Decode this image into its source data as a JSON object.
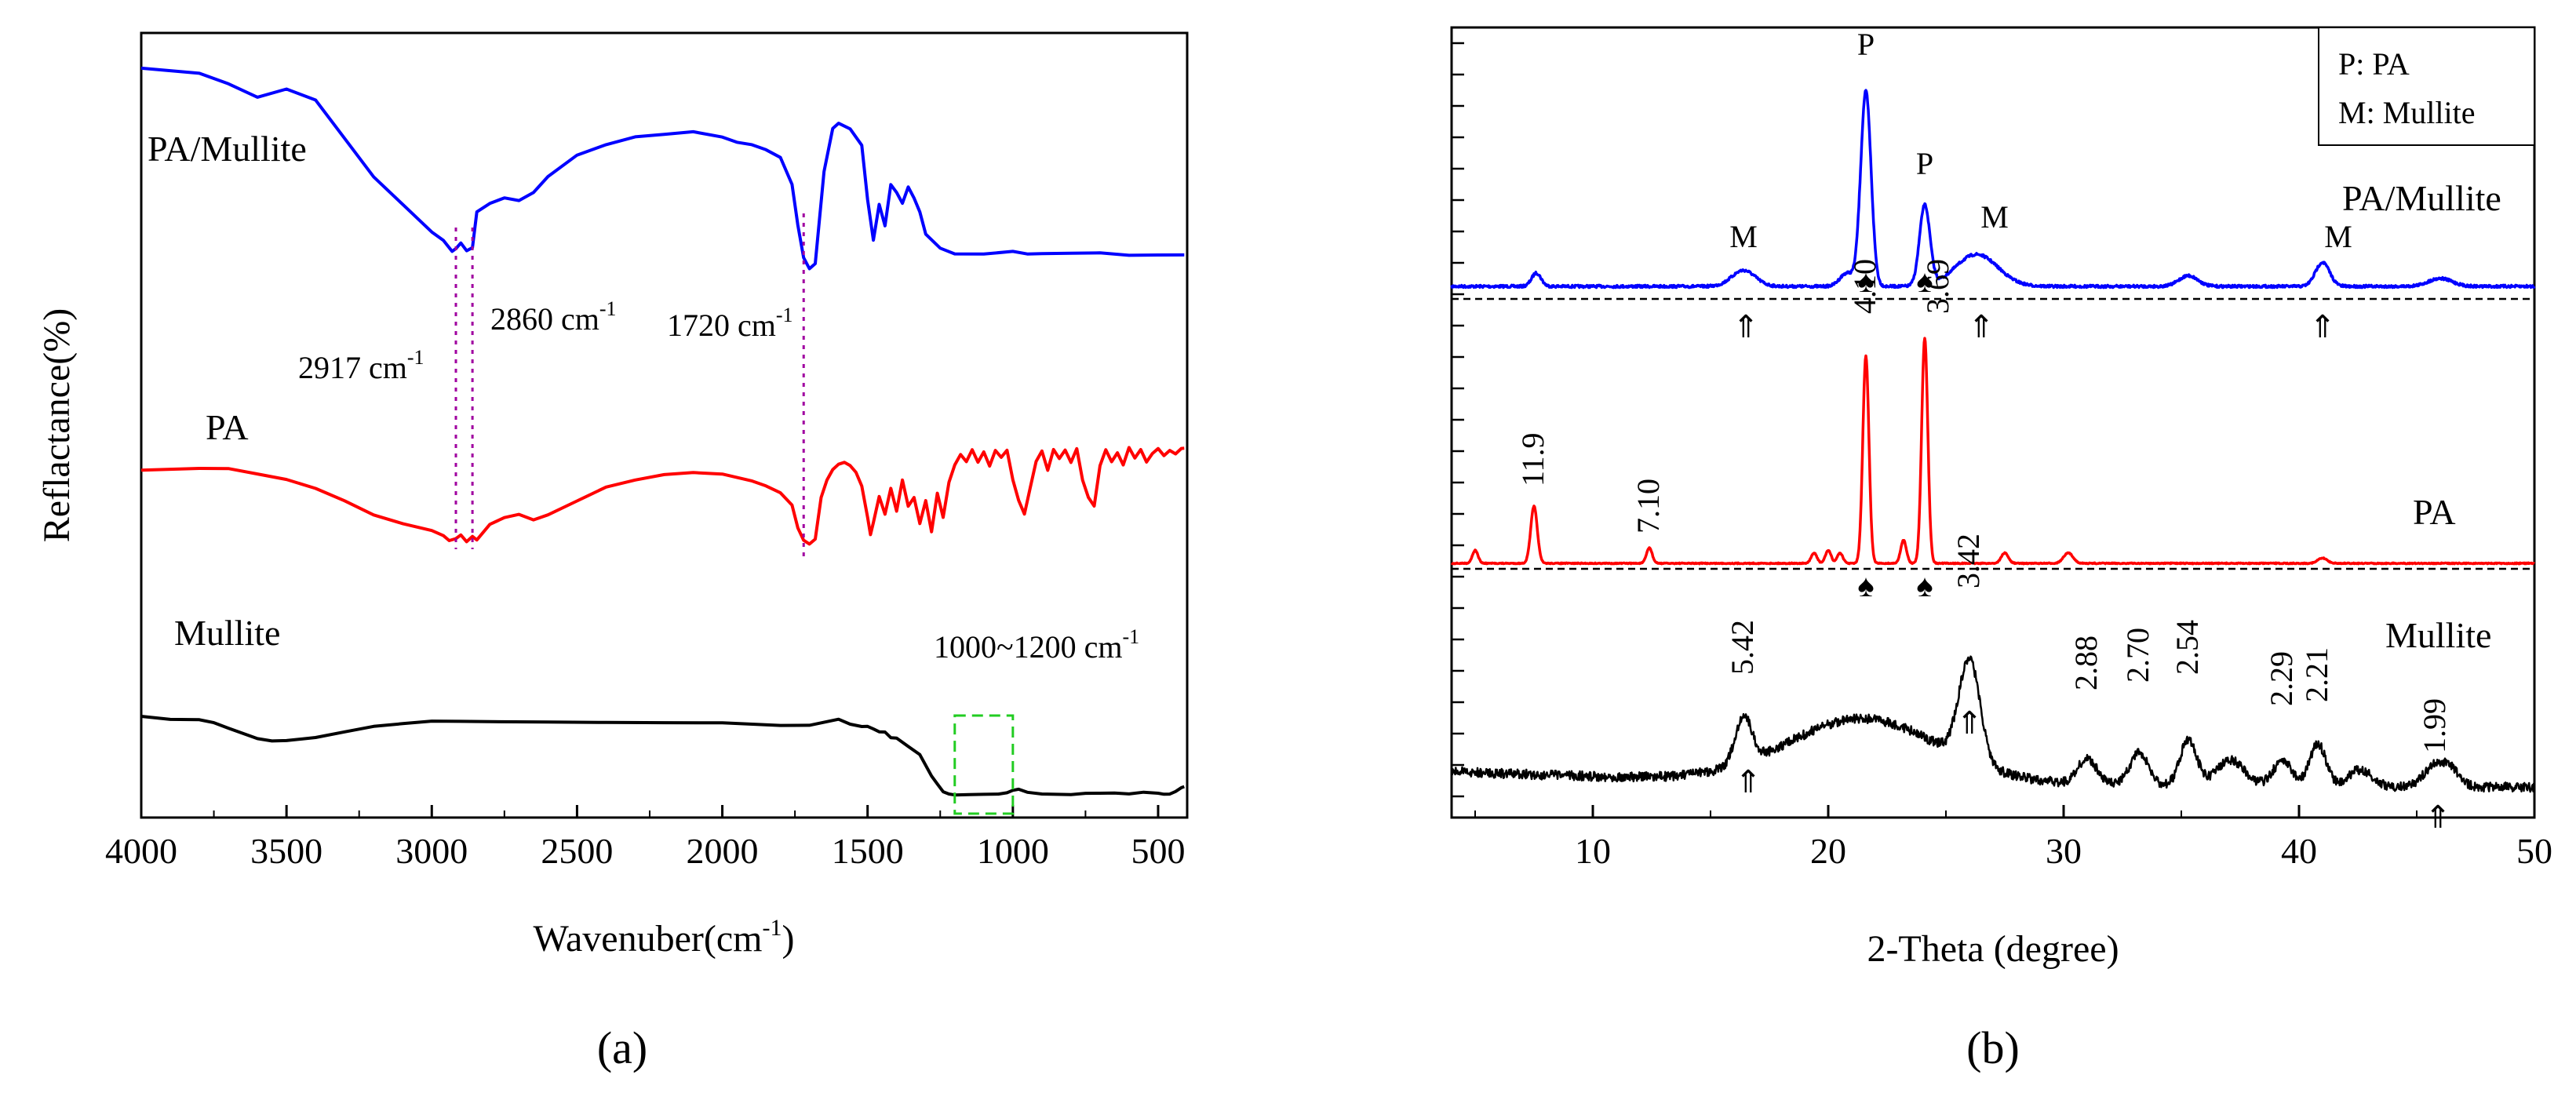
{
  "chart_data": [
    {
      "type": "line",
      "panel_label": "(a)",
      "title": "",
      "xlabel": "Wavenuber(cm-1)",
      "xlabel_main": "Wavenuber(cm",
      "xlabel_sup": "-1",
      "xlabel_close": ")",
      "ylabel": "Reflactance(%)",
      "xlim": [
        4000,
        400
      ],
      "xticks": [
        4000,
        3500,
        3000,
        2500,
        2000,
        1500,
        1000,
        500
      ],
      "tick_labels": [
        "4000",
        "3500",
        "3000",
        "2500",
        "2000",
        "1500",
        "1000",
        "500"
      ],
      "series": [
        {
          "name": "PA/Mullite",
          "color": "#0000ff",
          "x": [
            4000,
            3800,
            3700,
            3600,
            3500,
            3400,
            3300,
            3200,
            3100,
            3000,
            2960,
            2930,
            2917,
            2900,
            2880,
            2860,
            2845,
            2800,
            2750,
            2700,
            2650,
            2600,
            2500,
            2400,
            2300,
            2200,
            2100,
            2000,
            1950,
            1900,
            1850,
            1800,
            1760,
            1740,
            1720,
            1700,
            1680,
            1650,
            1620,
            1600,
            1560,
            1520,
            1500,
            1480,
            1460,
            1440,
            1420,
            1400,
            1380,
            1360,
            1340,
            1320,
            1300,
            1250,
            1200,
            1100,
            1000,
            950,
            900,
            800,
            700,
            600,
            500,
            410
          ],
          "y": [
            88,
            86,
            82,
            77,
            80,
            76,
            62,
            48,
            38,
            28,
            25,
            21,
            22,
            24,
            21,
            22,
            35,
            38,
            40,
            39,
            42,
            48,
            56,
            60,
            63,
            64,
            65,
            63,
            61,
            60,
            58,
            55,
            45,
            30,
            18,
            14,
            16,
            50,
            66,
            68,
            66,
            60,
            40,
            25,
            38,
            30,
            45,
            42,
            38,
            44,
            40,
            35,
            27,
            22,
            20,
            20,
            21,
            20,
            20,
            20,
            20,
            19,
            19,
            19
          ]
        },
        {
          "name": "PA",
          "color": "#ff0000",
          "x": [
            4000,
            3800,
            3700,
            3600,
            3500,
            3400,
            3300,
            3200,
            3100,
            3000,
            2960,
            2940,
            2917,
            2900,
            2880,
            2860,
            2845,
            2800,
            2750,
            2700,
            2650,
            2600,
            2500,
            2400,
            2300,
            2200,
            2100,
            2000,
            1900,
            1850,
            1800,
            1760,
            1740,
            1720,
            1700,
            1680,
            1660,
            1640,
            1620,
            1600,
            1580,
            1560,
            1540,
            1520,
            1500,
            1490,
            1480,
            1460,
            1440,
            1420,
            1400,
            1380,
            1360,
            1340,
            1320,
            1300,
            1280,
            1260,
            1240,
            1220,
            1200,
            1180,
            1160,
            1140,
            1120,
            1100,
            1080,
            1060,
            1040,
            1020,
            1000,
            980,
            960,
            940,
            920,
            900,
            880,
            860,
            840,
            820,
            800,
            780,
            760,
            740,
            720,
            700,
            680,
            660,
            640,
            620,
            600,
            580,
            560,
            540,
            520,
            500,
            480,
            460,
            440,
            420,
            410
          ],
          "y": [
            45,
            46,
            46,
            43,
            40,
            35,
            28,
            20,
            15,
            11,
            8,
            5,
            6,
            8,
            4,
            7,
            5,
            14,
            18,
            20,
            17,
            20,
            28,
            36,
            40,
            43,
            44,
            43,
            39,
            36,
            32,
            25,
            12,
            5,
            3,
            6,
            30,
            40,
            46,
            49,
            50,
            48,
            44,
            36,
            18,
            8,
            15,
            30,
            20,
            35,
            22,
            40,
            25,
            30,
            15,
            28,
            10,
            32,
            18,
            38,
            48,
            54,
            50,
            57,
            50,
            56,
            48,
            57,
            53,
            57,
            40,
            28,
            20,
            35,
            50,
            56,
            45,
            57,
            52,
            57,
            50,
            58,
            40,
            30,
            25,
            48,
            57,
            50,
            55,
            48,
            58,
            52,
            57,
            50,
            55,
            58,
            54,
            57,
            55,
            58,
            58
          ]
        },
        {
          "name": "Mullite",
          "color": "#000000",
          "x": [
            4000,
            3900,
            3800,
            3750,
            3700,
            3650,
            3600,
            3550,
            3500,
            3400,
            3300,
            3200,
            3100,
            3000,
            2900,
            2800,
            2600,
            2400,
            2200,
            2000,
            1800,
            1700,
            1650,
            1600,
            1560,
            1520,
            1500,
            1480,
            1460,
            1440,
            1420,
            1400,
            1360,
            1320,
            1280,
            1260,
            1240,
            1220,
            1200,
            1150,
            1100,
            1050,
            1020,
            1000,
            980,
            950,
            900,
            850,
            800,
            750,
            700,
            650,
            600,
            550,
            500,
            480,
            460,
            440,
            420,
            410
          ],
          "y": [
            30,
            29,
            29,
            28,
            26,
            24,
            22,
            21,
            21,
            22,
            24,
            26,
            27,
            28,
            28,
            28,
            28,
            28,
            28,
            28,
            27,
            27,
            28,
            29,
            27,
            26,
            26,
            25,
            24,
            24,
            22,
            22,
            19,
            16,
            8,
            5,
            2,
            1,
            0.5,
            0.5,
            0.5,
            0.5,
            1,
            2,
            2.5,
            1.5,
            1,
            1,
            1,
            1.5,
            1.5,
            1.5,
            1,
            1.5,
            1,
            0.5,
            0.5,
            1.5,
            3,
            3.5
          ]
        }
      ],
      "labels": [
        {
          "text": "PA/Mullite",
          "x": 3980,
          "y": 80
        },
        {
          "text": "PA",
          "x": 3760,
          "y": 32
        },
        {
          "text": "Mullite",
          "x": 3830,
          "y": 13
        }
      ],
      "annotations": [
        {
          "text": "2917 cm",
          "sup": "-1",
          "x": 2917
        },
        {
          "text": "2860 cm",
          "sup": "-1",
          "x": 2860
        },
        {
          "text": "1720 cm",
          "sup": "-1",
          "x": 1720
        },
        {
          "text": "1000~1200 cm",
          "sup": "-1",
          "range": [
            1200,
            1000
          ]
        }
      ]
    },
    {
      "type": "line",
      "panel_label": "(b)",
      "title": "",
      "xlabel": "2-Theta (degree)",
      "ylabel": "",
      "xlim": [
        4,
        50
      ],
      "xticks": [
        10,
        20,
        30,
        40,
        50
      ],
      "tick_labels": [
        "10",
        "20",
        "30",
        "40",
        "50"
      ],
      "legend": [
        "P: PA",
        "M: Mullite"
      ],
      "legend_position": "top-right",
      "series": [
        {
          "name": "PA/Mullite",
          "color": "#0000ff",
          "peaks": [
            {
              "x": 7.6,
              "h": 5,
              "w": 0.2
            },
            {
              "x": 16.4,
              "h": 6,
              "w": 0.5
            },
            {
              "x": 20.8,
              "h": 5,
              "w": 0.3
            },
            {
              "x": 21.6,
              "h": 73,
              "w": 0.22
            },
            {
              "x": 24.1,
              "h": 30,
              "w": 0.22
            },
            {
              "x": 26.3,
              "h": 12,
              "w": 0.9
            },
            {
              "x": 35.3,
              "h": 4,
              "w": 0.4
            },
            {
              "x": 41.0,
              "h": 9,
              "w": 0.3
            },
            {
              "x": 46.0,
              "h": 3,
              "w": 0.5
            }
          ]
        },
        {
          "name": "PA",
          "color": "#ff0000",
          "peaks": [
            {
              "x": 5.0,
              "h": 5,
              "w": 0.12
            },
            {
              "x": 7.5,
              "h": 22,
              "w": 0.14
            },
            {
              "x": 12.4,
              "h": 6,
              "w": 0.12
            },
            {
              "x": 19.4,
              "h": 4,
              "w": 0.12
            },
            {
              "x": 20.0,
              "h": 5,
              "w": 0.12
            },
            {
              "x": 20.5,
              "h": 4,
              "w": 0.12
            },
            {
              "x": 21.6,
              "h": 80,
              "w": 0.13
            },
            {
              "x": 23.2,
              "h": 9,
              "w": 0.12
            },
            {
              "x": 24.1,
              "h": 87,
              "w": 0.13
            },
            {
              "x": 27.5,
              "h": 4,
              "w": 0.15
            },
            {
              "x": 30.2,
              "h": 4,
              "w": 0.2
            },
            {
              "x": 41.0,
              "h": 2,
              "w": 0.2
            }
          ]
        },
        {
          "name": "Mullite",
          "color": "#000000",
          "peaks": [
            {
              "x": 16.4,
              "h": 22,
              "w": 0.35
            },
            {
              "x": 21.5,
              "h": 30,
              "w": 3.2
            },
            {
              "x": 26.0,
              "h": 48,
              "w": 0.45
            },
            {
              "x": 31.0,
              "h": 12,
              "w": 0.4
            },
            {
              "x": 33.2,
              "h": 15,
              "w": 0.4
            },
            {
              "x": 35.3,
              "h": 22,
              "w": 0.35
            },
            {
              "x": 37.1,
              "h": 12,
              "w": 0.6
            },
            {
              "x": 39.3,
              "h": 12,
              "w": 0.4
            },
            {
              "x": 40.8,
              "h": 20,
              "w": 0.35
            },
            {
              "x": 42.6,
              "h": 8,
              "w": 0.5
            },
            {
              "x": 45.8,
              "h": 10,
              "w": 0.5
            },
            {
              "x": 46.5,
              "h": 6,
              "w": 0.4
            }
          ]
        }
      ],
      "labels": [
        {
          "text": "PA/Mullite"
        },
        {
          "text": "PA"
        },
        {
          "text": "Mullite"
        }
      ],
      "annotations": [
        {
          "text": "P",
          "x": 21.6,
          "series": "PA/Mullite"
        },
        {
          "text": "P",
          "x": 24.1,
          "series": "PA/Mullite"
        },
        {
          "text": "M",
          "x": 16.4,
          "series": "PA/Mullite"
        },
        {
          "text": "M",
          "x": 26.4,
          "series": "PA/Mullite"
        },
        {
          "text": "M",
          "x": 41.0,
          "series": "PA/Mullite"
        },
        {
          "text": "11.9",
          "x": 7.5,
          "series": "PA"
        },
        {
          "text": "7.10",
          "x": 12.4,
          "series": "PA"
        },
        {
          "text": "4.10",
          "x": 21.6,
          "series": "PA"
        },
        {
          "text": "3.69",
          "x": 24.1,
          "series": "PA"
        },
        {
          "text": "3.42",
          "x": 26.0,
          "series": "Mullite"
        },
        {
          "text": "5.42",
          "x": 16.4,
          "series": "Mullite"
        },
        {
          "text": "2.88",
          "x": 31.0,
          "series": "Mullite"
        },
        {
          "text": "2.70",
          "x": 33.2,
          "series": "Mullite"
        },
        {
          "text": "2.54",
          "x": 35.3,
          "series": "Mullite"
        },
        {
          "text": "2.29",
          "x": 39.3,
          "series": "Mullite"
        },
        {
          "text": "2.21",
          "x": 40.8,
          "series": "Mullite"
        },
        {
          "text": "1.99",
          "x": 45.8,
          "series": "Mullite"
        }
      ],
      "markers": {
        "mullite_arrow": "⇑",
        "pa_marker": "♠",
        "mullite_arrow_x": [
          16.5,
          26.5,
          41.0,
          16.6,
          26.0,
          45.9
        ],
        "pa_marker_x": [
          21.6,
          24.1,
          21.6,
          24.1
        ]
      }
    }
  ]
}
